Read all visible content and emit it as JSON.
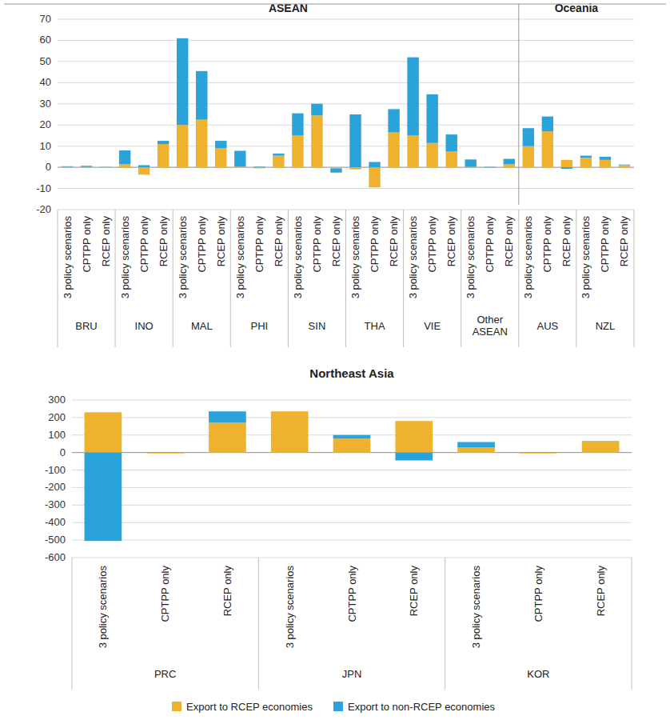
{
  "chart_data": [
    {
      "type": "bar",
      "stacked": true,
      "grid": true,
      "ylim": [
        -20,
        70
      ],
      "yticks": [
        -20,
        -10,
        0,
        10,
        20,
        30,
        40,
        50,
        60,
        70
      ],
      "sections": [
        {
          "label": "ASEAN",
          "groups": [
            "BRU",
            "INO",
            "MAL",
            "PHI",
            "SIN",
            "THA",
            "VIE",
            "Other ASEAN"
          ]
        },
        {
          "label": "Oceania",
          "groups": [
            "AUS",
            "NZL"
          ]
        }
      ],
      "groups": [
        {
          "label": "BRU",
          "categories": [
            "3 policy scenarios",
            "CPTPP only",
            "RCEP only"
          ]
        },
        {
          "label": "INO",
          "categories": [
            "3 policy scenarios",
            "CPTPP only",
            "RCEP only"
          ]
        },
        {
          "label": "MAL",
          "categories": [
            "3 policy scenarios",
            "CPTPP only",
            "RCEP only"
          ]
        },
        {
          "label": "PHI",
          "categories": [
            "3 policy scenarios",
            "CPTPP only",
            "RCEP only"
          ]
        },
        {
          "label": "SIN",
          "categories": [
            "3 policy scenarios",
            "CPTPP only",
            "RCEP only"
          ]
        },
        {
          "label": "THA",
          "categories": [
            "3 policy scenarios",
            "CPTPP only",
            "RCEP only"
          ]
        },
        {
          "label": "VIE",
          "categories": [
            "3 policy scenarios",
            "CPTPP only",
            "RCEP only"
          ]
        },
        {
          "label": "Other ASEAN",
          "categories": [
            "3 policy scenarios",
            "CPTPP only",
            "RCEP only"
          ]
        },
        {
          "label": "AUS",
          "categories": [
            "3 policy scenarios",
            "CPTPP only",
            "RCEP only"
          ]
        },
        {
          "label": "NZL",
          "categories": [
            "3 policy scenarios",
            "CPTPP only",
            "RCEP only"
          ]
        }
      ],
      "series": [
        {
          "color": "#eeb22f",
          "values": [
            0.2,
            0.2,
            0.1,
            1.5,
            -3.5,
            11,
            20,
            22.5,
            9,
            0.3,
            -0.5,
            5.5,
            15,
            24.5,
            -0.5,
            -1,
            -9.5,
            16.5,
            15,
            11.5,
            7.5,
            0.2,
            -0.3,
            1.5,
            10,
            17,
            3.5,
            4.5,
            3.5,
            1
          ]
        },
        {
          "color": "#2aa3db",
          "values": [
            0.3,
            0.5,
            0.1,
            6.5,
            1,
            1.5,
            41,
            23,
            3.5,
            7.5,
            0.3,
            1,
            10.5,
            5.5,
            -2,
            25,
            2.5,
            11,
            37,
            23,
            8,
            3.5,
            0.2,
            2.5,
            8.5,
            7,
            -0.7,
            1,
            1.5,
            0.3
          ]
        }
      ]
    },
    {
      "type": "bar",
      "stacked": true,
      "grid": true,
      "title": "Northeast Asia",
      "legend": "bottom",
      "ylim": [
        -600,
        300
      ],
      "yticks": [
        -600,
        -500,
        -400,
        -300,
        -200,
        -100,
        0,
        100,
        200,
        300
      ],
      "groups": [
        {
          "label": "PRC",
          "categories": [
            "3 policy scenarios",
            "CPTPP only",
            "RCEP only"
          ]
        },
        {
          "label": "JPN",
          "categories": [
            "3 policy scenarios",
            "CPTPP only",
            "RCEP only"
          ]
        },
        {
          "label": "KOR",
          "categories": [
            "3 policy scenarios",
            "CPTPP only",
            "RCEP only"
          ]
        }
      ],
      "series": [
        {
          "name": "Export to RCEP economies",
          "color": "#eeb22f",
          "values": [
            230,
            -5,
            170,
            235,
            80,
            180,
            30,
            -5,
            62
          ]
        },
        {
          "name": "Export to non-RCEP economies",
          "color": "#2aa3db",
          "values": [
            -505,
            0,
            65,
            0,
            20,
            -45,
            30,
            0,
            3
          ]
        }
      ]
    }
  ]
}
